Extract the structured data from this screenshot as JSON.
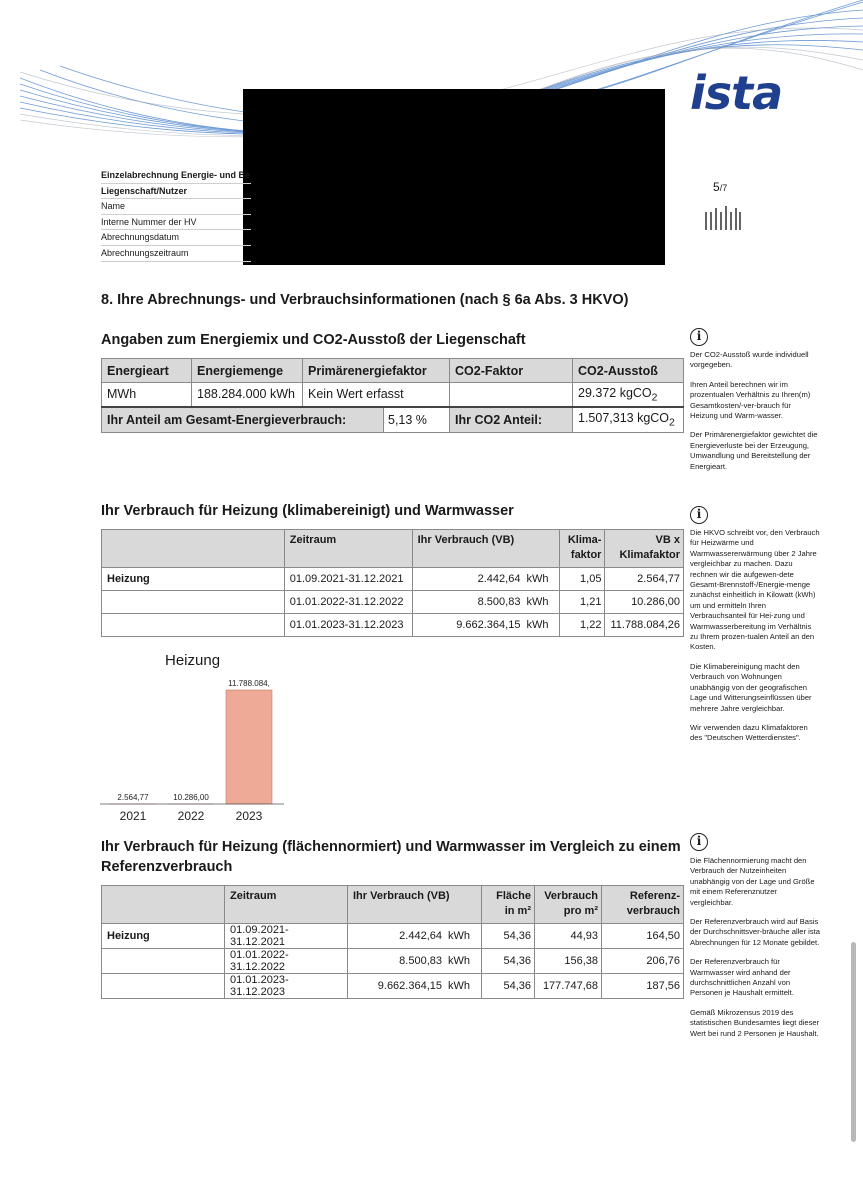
{
  "header": {
    "logo_text": "ista",
    "brand_color": "#1f3f8f",
    "page": {
      "current": "5",
      "total": "/7"
    },
    "meta_rows": [
      "Einzelabrechnung Energie- und Be",
      "Liegenschaft/Nutzer",
      "Name",
      "Interne Nummer der HV",
      "Abrechnungsdatum",
      "Abrechnungszeitraum"
    ]
  },
  "section_title": "8. Ihre Abrechnungs- und Verbrauchsinformationen (nach § 6a Abs. 3 HKVO)",
  "energy": {
    "title": "Angaben zum Energiemix und CO2-Ausstoß der Liegenschaft",
    "headers": [
      "Energieart",
      "Energiemenge",
      "Primärenergiefaktor",
      "CO2-Faktor",
      "CO2-Ausstoß"
    ],
    "row": [
      "MWh",
      "188.284.000 kWh",
      "Kein Wert erfasst",
      "",
      "29.372 kgCO",
      "2"
    ],
    "share_label": "Ihr Anteil am Gesamt-Energieverbrauch:",
    "share_value": "5,13 %",
    "co2_label": "Ihr CO2 Anteil:",
    "co2_value": "1.507,313 kgCO",
    "co2_sub": "2"
  },
  "consumption": {
    "title": "Ihr Verbrauch für Heizung (klimabereinigt) und Warmwasser",
    "headers": [
      "Zeitraum",
      "Ihr Verbrauch (VB)",
      "Klima-",
      "faktor",
      "VB x",
      "Klimafaktor"
    ],
    "label": "Heizung",
    "rows": [
      {
        "period": "01.09.2021-31.12.2021",
        "value": "2.442,64",
        "unit": "kWh",
        "factor": "1,05",
        "vbk": "2.564,77"
      },
      {
        "period": "01.01.2022-31.12.2022",
        "value": "8.500,83",
        "unit": "kWh",
        "factor": "1,21",
        "vbk": "10.286,00"
      },
      {
        "period": "01.01.2023-31.12.2023",
        "value": "9.662.364,15",
        "unit": "kWh",
        "factor": "1,22",
        "vbk": "11.788.084,26"
      }
    ]
  },
  "chart_data": {
    "type": "bar",
    "title": "Heizung",
    "categories": [
      "2021",
      "2022",
      "2023"
    ],
    "values": [
      2564.77,
      10286.0,
      11788084.26
    ],
    "data_labels": [
      "2.564,77",
      "10.286,00",
      "11.788.084,"
    ],
    "bar_color": "#eeaa96",
    "ylim": [
      0,
      11788084.26
    ],
    "grid": false
  },
  "reference": {
    "title": "Ihr Verbrauch für Heizung (flächennormiert) und Warmwasser im Vergleich zu einem Referenzverbrauch",
    "headers": [
      "Zeitraum",
      "Ihr Verbrauch (VB)",
      "Fläche",
      "in m²",
      "Verbrauch",
      "pro m²",
      "Referenz-",
      "verbrauch"
    ],
    "label": "Heizung",
    "rows": [
      {
        "period": "01.09.2021-31.12.2021",
        "value": "2.442,64",
        "unit": "kWh",
        "area": "54,36",
        "per_m2": "44,93",
        "ref": "164,50"
      },
      {
        "period": "01.01.2022-31.12.2022",
        "value": "8.500,83",
        "unit": "kWh",
        "area": "54,36",
        "per_m2": "156,38",
        "ref": "206,76"
      },
      {
        "period": "01.01.2023-31.12.2023",
        "value": "9.662.364,15",
        "unit": "kWh",
        "area": "54,36",
        "per_m2": "177.747,68",
        "ref": "187,56"
      }
    ]
  },
  "notes": {
    "n1": [
      "Der CO2-Ausstoß wurde individuell vorgegeben.",
      "Ihren Anteil berechnen wir im prozentualen Verhältnis zu Ihren(m) Gesamtkosten/-ver-brauch für Heizung und Warm-wasser.",
      "Der Primärenergiefaktor gewichtet die Energieverluste bei der Erzeugung, Umwandlung und Bereitstellung der Energieart."
    ],
    "n2": [
      "Die HKVO schreibt vor, den Verbrauch für Heizwärme und Warmwassererwärmung über 2 Jahre vergleichbar zu machen. Dazu rechnen wir die aufgewen-dete Gesamt-Brennstoff-/Energie-menge zunächst einheitlich in Kilowatt (kWh) um und ermitteln Ihren Verbrauchsanteil für Hei-zung und Warmwasserbereitung im Verhältnis zu Ihrem prozen-tualen Anteil an den Kosten.",
      "Die Klimabereinigung macht den Verbrauch von Wohnungen unabhängig von der geografischen Lage und Witterungseinflüssen über mehrere Jahre vergleichbar.",
      "Wir verwenden dazu Klimafaktoren des \"Deutschen Wetterdienstes\"."
    ],
    "n3": [
      "Die Flächennormierung macht den Verbrauch der Nutzeinheiten unabhängig von der Lage und Größe mit einem Referenznutzer vergleichbar.",
      "Der Referenzverbrauch wird auf Basis der Durchschnittsver-bräuche aller ista Abrechnungen für 12 Monate gebildet.",
      "Der Referenzverbrauch für Warmwasser wird anhand der durchschnittlichen Anzahl von Personen je Haushalt ermittelt.",
      "Gemäß Mikrozensus 2019 des statistischen Bundesamtes liegt dieser Wert bei rund 2 Personen je Haushalt."
    ],
    "info_glyph": "i"
  }
}
